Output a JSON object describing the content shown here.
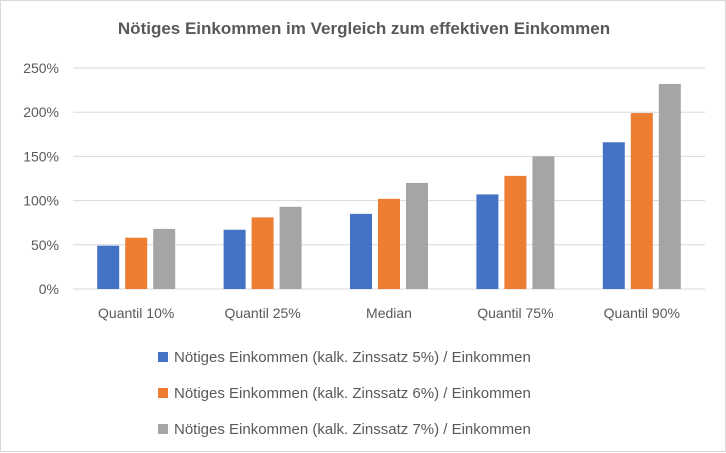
{
  "chart_data": {
    "type": "bar",
    "title": "Nötiges Einkommen im Vergleich zum effektiven Einkommen",
    "categories": [
      "Quantil 10%",
      "Quantil 25%",
      "Median",
      "Quantil 75%",
      "Quantil 90%"
    ],
    "series": [
      {
        "name": "Nötiges Einkommen (kalk. Zinssatz 5%) / Einkommen",
        "color": "#4472c4",
        "values": [
          49,
          67,
          85,
          107,
          166
        ]
      },
      {
        "name": "Nötiges Einkommen (kalk. Zinssatz 6%) / Einkommen",
        "color": "#ed7d31",
        "values": [
          58,
          81,
          102,
          128,
          199
        ]
      },
      {
        "name": "Nötiges Einkommen (kalk. Zinssatz 7%) / Einkommen",
        "color": "#a5a5a5",
        "values": [
          68,
          93,
          120,
          150,
          232
        ]
      }
    ],
    "ylim": [
      0,
      250
    ],
    "yticks": [
      0,
      50,
      100,
      150,
      200,
      250
    ],
    "ytick_labels": [
      "0%",
      "50%",
      "100%",
      "150%",
      "200%",
      "250%"
    ],
    "grid": true,
    "legend": "bottom"
  }
}
